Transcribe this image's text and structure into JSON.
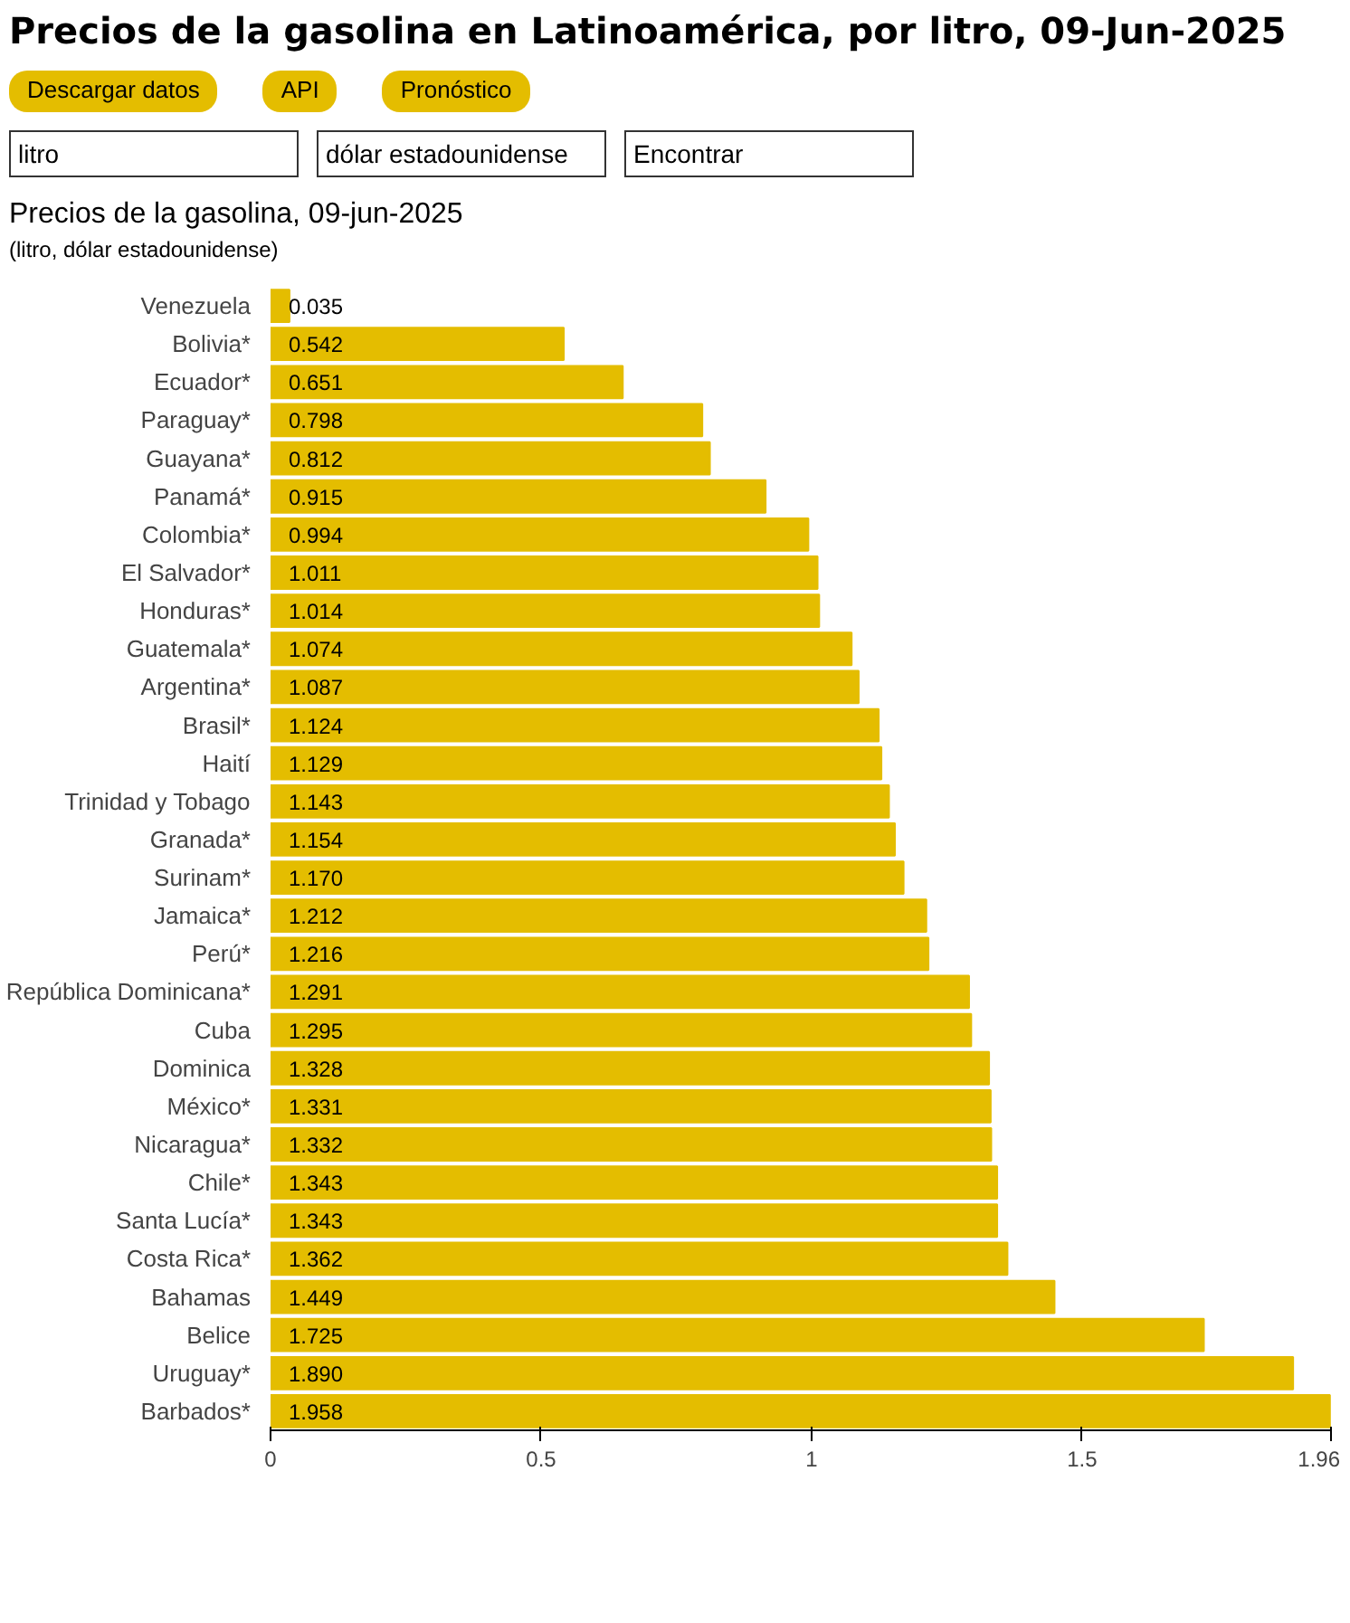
{
  "chart_data": {
    "type": "bar",
    "orientation": "horizontal",
    "title": "Precios de la gasolina en Latinoamérica, por litro, 09-Jun-2025",
    "subtitle": "Precios de la gasolina, 09-jun-2025\n(litro, dólar estadounidense)",
    "annotations": [
      "Descargar datos",
      "API",
      "Pronóstico",
      "litro",
      "dólar estadounidense",
      "Encontrar"
    ],
    "categories": [
      "Venezuela",
      "Bolivia*",
      "Ecuador*",
      "Paraguay*",
      "Guayana*",
      "Panamá*",
      "Colombia*",
      "El Salvador*",
      "Honduras*",
      "Guatemala*",
      "Argentina*",
      "Brasil*",
      "Haití",
      "Trinidad y Tobago",
      "Granada*",
      "Surinam*",
      "Jamaica*",
      "Perú*",
      "República Dominicana*",
      "Cuba",
      "Dominica",
      "México*",
      "Nicaragua*",
      "Chile*",
      "Santa Lucía*",
      "Costa Rica*",
      "Bahamas",
      "Belice",
      "Uruguay*",
      "Barbados*"
    ],
    "values": [
      0.035,
      0.542,
      0.651,
      0.798,
      0.812,
      0.915,
      0.994,
      1.011,
      1.014,
      1.074,
      1.087,
      1.124,
      1.129,
      1.143,
      1.154,
      1.17,
      1.212,
      1.216,
      1.291,
      1.295,
      1.328,
      1.331,
      1.332,
      1.343,
      1.343,
      1.362,
      1.449,
      1.725,
      1.89,
      1.958
    ],
    "value_labels": [
      "0.035",
      "0.542",
      "0.651",
      "0.798",
      "0.812",
      "0.915",
      "0.994",
      "1.011",
      "1.014",
      "1.074",
      "1.087",
      "1.124",
      "1.129",
      "1.143",
      "1.154",
      "1.170",
      "1.212",
      "1.216",
      "1.291",
      "1.295",
      "1.328",
      "1.331",
      "1.332",
      "1.343",
      "1.343",
      "1.362",
      "1.449",
      "1.725",
      "1.890",
      "1.958"
    ],
    "color": "#e4bd00",
    "xlim": [
      0,
      1.96
    ],
    "xticks": [
      0,
      0.5,
      1,
      1.5,
      1.96
    ],
    "grid": false
  }
}
